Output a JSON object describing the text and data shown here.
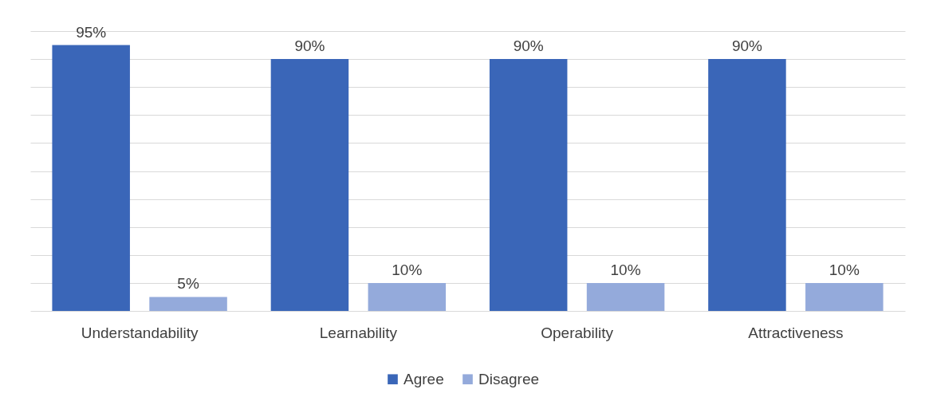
{
  "chart_data": {
    "type": "bar",
    "categories": [
      "Understandability",
      "Learnability",
      "Operability",
      "Attractiveness"
    ],
    "series": [
      {
        "name": "Agree",
        "color": "#3a66b8",
        "values": [
          95,
          90,
          90,
          90
        ],
        "value_labels": [
          "95%",
          "90%",
          "90%",
          "90%"
        ]
      },
      {
        "name": "Disagree",
        "color": "#94aadb",
        "values": [
          5,
          10,
          10,
          10
        ],
        "value_labels": [
          "5%",
          "10%",
          "10%",
          "10%"
        ]
      }
    ],
    "ylim": [
      0,
      100
    ],
    "yticks": [
      {
        "value": 0,
        "label": null
      },
      {
        "value": 10,
        "label": null
      },
      {
        "value": 20,
        "label": null
      },
      {
        "value": 30,
        "label": null
      },
      {
        "value": 40,
        "label": null
      },
      {
        "value": 50,
        "label": null
      },
      {
        "value": 60,
        "label": null
      },
      {
        "value": 70,
        "label": null
      },
      {
        "value": 80,
        "label": null
      },
      {
        "value": 90,
        "label": null
      },
      {
        "value": 100,
        "label": null
      }
    ],
    "grid": "y",
    "legend": "bottom",
    "tick_labels": "x"
  }
}
